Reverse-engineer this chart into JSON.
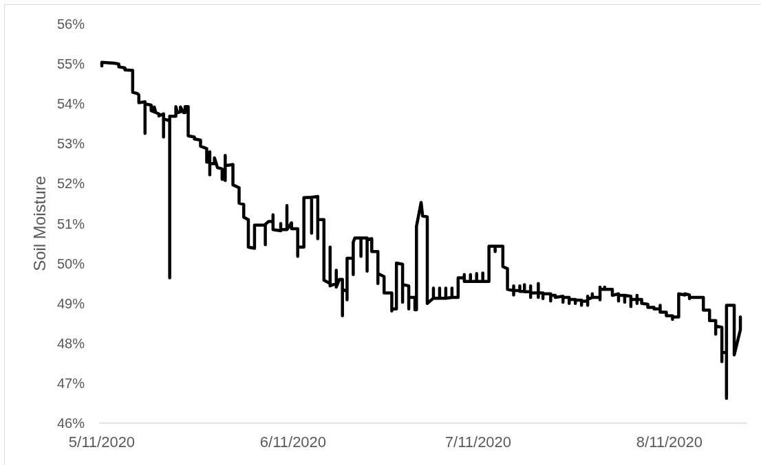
{
  "chart_data": {
    "type": "line",
    "ylabel": "Soil Moisture",
    "color": "#000000",
    "marker": "none",
    "line_style": "solid",
    "xlim": [
      "2020-05-10T16:00",
      "2020-08-23T12:00"
    ],
    "xticks": [
      {
        "value": "2020-05-11",
        "label": "5/11/2020"
      },
      {
        "value": "2020-06-11",
        "label": "6/11/2020"
      },
      {
        "value": "2020-07-11",
        "label": "7/11/2020"
      },
      {
        "value": "2020-08-11",
        "label": "8/11/2020"
      }
    ],
    "ylim": [
      46,
      56
    ],
    "yticks": [
      {
        "value": 46,
        "label": "46%"
      },
      {
        "value": 47,
        "label": "47%"
      },
      {
        "value": 48,
        "label": "48%"
      },
      {
        "value": 49,
        "label": "49%"
      },
      {
        "value": 50,
        "label": "50%"
      },
      {
        "value": 51,
        "label": "51%"
      },
      {
        "value": 52,
        "label": "52%"
      },
      {
        "value": 53,
        "label": "53%"
      },
      {
        "value": 54,
        "label": "54%"
      },
      {
        "value": 55,
        "label": "55%"
      },
      {
        "value": 56,
        "label": "56%"
      }
    ],
    "x": [
      "2020-05-11T00:00",
      "2020-05-11T00:00",
      "2020-05-13T00:00",
      "2020-05-13T18:00",
      "2020-05-13T18:00",
      "2020-05-14T18:00",
      "2020-05-14T18:00",
      "2020-05-16T00:00",
      "2020-05-16T00:00",
      "2020-05-16T18:00",
      "2020-05-17T00:00",
      "2020-05-17T00:00",
      "2020-05-18T00:00",
      "2020-05-18T00:00",
      "2020-05-18T00:00",
      "2020-05-19T00:00",
      "2020-05-19T00:00",
      "2020-05-19T12:00",
      "2020-05-19T12:00",
      "2020-05-19T18:00",
      "2020-05-20T06:00",
      "2020-05-20T06:00",
      "2020-05-21T00:00",
      "2020-05-21T00:00",
      "2020-05-21T00:00",
      "2020-05-21T12:00",
      "2020-05-22T00:00",
      "2020-05-22T00:00",
      "2020-05-22T00:00",
      "2020-05-23T00:00",
      "2020-05-23T00:00",
      "2020-05-23T06:00",
      "2020-05-23T18:00",
      "2020-05-23T18:00",
      "2020-05-24T06:00",
      "2020-05-24T12:00",
      "2020-05-24T12:00",
      "2020-05-25T00:00",
      "2020-05-25T00:00",
      "2020-05-26T00:00",
      "2020-05-26T00:00",
      "2020-05-27T00:00",
      "2020-05-27T00:00",
      "2020-05-28T00:00",
      "2020-05-28T00:00",
      "2020-05-28T12:00",
      "2020-05-28T12:00",
      "2020-05-28T12:00",
      "2020-05-28T12:00",
      "2020-05-29T06:00",
      "2020-05-29T06:00",
      "2020-05-29T18:00",
      "2020-05-30T12:00",
      "2020-05-30T12:00",
      "2020-05-31T00:00",
      "2020-05-31T00:00",
      "2020-05-31T00:00",
      "2020-05-31T00:00",
      "2020-06-01T06:00",
      "2020-06-01T06:00",
      "2020-06-02T06:00",
      "2020-06-02T06:00",
      "2020-06-03T00:00",
      "2020-06-03T00:00",
      "2020-06-03T18:00",
      "2020-06-03T18:00",
      "2020-06-04T18:00",
      "2020-06-04T18:00",
      "2020-06-06T12:00",
      "2020-06-06T12:00",
      "2020-06-06T12:00",
      "2020-06-07T00:00",
      "2020-06-07T18:00",
      "2020-06-07T18:00",
      "2020-06-07T18:00",
      "2020-06-09T00:00",
      "2020-06-09T00:00",
      "2020-06-09T00:00",
      "2020-06-10T00:00",
      "2020-06-10T00:00",
      "2020-06-10T00:00",
      "2020-06-10T18:00",
      "2020-06-10T18:00",
      "2020-06-11T18:00",
      "2020-06-11T18:00",
      "2020-06-11T18:00",
      "2020-06-12T18:00",
      "2020-06-12T18:00",
      "2020-06-14T00:00",
      "2020-06-14T00:00",
      "2020-06-14T00:00",
      "2020-06-15T00:00",
      "2020-06-15T00:00",
      "2020-06-15T00:00",
      "2020-06-16T00:00",
      "2020-06-16T00:00",
      "2020-06-17T00:00",
      "2020-06-17T00:00",
      "2020-06-17T00:00",
      "2020-06-18T00:00",
      "2020-06-18T00:00",
      "2020-06-18T00:00",
      "2020-06-18T12:00",
      "2020-06-19T00:00",
      "2020-06-19T00:00",
      "2020-06-19T00:00",
      "2020-06-19T18:00",
      "2020-06-19T18:00",
      "2020-06-19T18:00",
      "2020-06-20T18:00",
      "2020-06-20T18:00",
      "2020-06-20T18:00",
      "2020-06-21T00:00",
      "2020-06-22T00:00",
      "2020-06-22T00:00",
      "2020-06-22T00:00",
      "2020-06-23T00:00",
      "2020-06-23T00:00",
      "2020-06-23T00:00",
      "2020-06-23T18:00",
      "2020-06-23T18:00",
      "2020-06-24T18:00",
      "2020-06-24T18:00",
      "2020-06-24T18:00",
      "2020-06-25T18:00",
      "2020-06-25T18:00",
      "2020-06-27T00:00",
      "2020-06-27T00:00",
      "2020-06-27T00:00",
      "2020-06-27T18:00",
      "2020-06-27T18:00",
      "2020-06-28T18:00",
      "2020-06-28T18:00",
      "2020-06-28T18:00",
      "2020-06-29T18:00",
      "2020-06-29T18:00",
      "2020-06-29T18:00",
      "2020-06-30T18:00",
      "2020-06-30T18:00",
      "2020-07-01T00:00",
      "2020-07-01T00:00",
      "2020-07-01T18:00",
      "2020-07-02T00:00",
      "2020-07-02T18:00",
      "2020-07-02T18:00",
      "2020-07-03T18:00",
      "2020-07-03T18:00",
      "2020-07-03T18:00",
      "2020-07-04T18:00",
      "2020-07-04T18:00",
      "2020-07-04T18:00",
      "2020-07-05T18:00",
      "2020-07-05T18:00",
      "2020-07-05T18:00",
      "2020-07-06T18:00",
      "2020-07-06T18:00",
      "2020-07-06T18:00",
      "2020-07-07T18:00",
      "2020-07-07T18:00",
      "2020-07-08T18:00",
      "2020-07-08T18:00",
      "2020-07-08T18:00",
      "2020-07-09T18:00",
      "2020-07-09T18:00",
      "2020-07-09T18:00",
      "2020-07-10T18:00",
      "2020-07-10T18:00",
      "2020-07-10T18:00",
      "2020-07-11T18:00",
      "2020-07-11T18:00",
      "2020-07-11T18:00",
      "2020-07-12T18:00",
      "2020-07-12T18:00",
      "2020-07-13T18:00",
      "2020-07-13T18:00",
      "2020-07-13T18:00",
      "2020-07-15T00:00",
      "2020-07-15T00:00",
      "2020-07-15T18:00",
      "2020-07-15T18:00",
      "2020-07-16T18:00",
      "2020-07-16T18:00",
      "2020-07-16T18:00",
      "2020-07-16T18:00",
      "2020-07-17T18:00",
      "2020-07-17T18:00",
      "2020-07-17T18:00",
      "2020-07-18T12:00",
      "2020-07-18T12:00",
      "2020-07-18T12:00",
      "2020-07-19T12:00",
      "2020-07-19T12:00",
      "2020-07-19T12:00",
      "2020-07-19T12:00",
      "2020-07-20T18:00",
      "2020-07-20T18:00",
      "2020-07-20T18:00",
      "2020-07-20T18:00",
      "2020-07-21T12:00",
      "2020-07-21T12:00",
      "2020-07-21T12:00",
      "2020-07-22T18:00",
      "2020-07-22T18:00",
      "2020-07-22T18:00",
      "2020-07-23T12:00",
      "2020-07-23T12:00",
      "2020-07-24T18:00",
      "2020-07-24T18:00",
      "2020-07-24T18:00",
      "2020-07-25T18:00",
      "2020-07-25T18:00",
      "2020-07-25T18:00",
      "2020-07-26T18:00",
      "2020-07-26T18:00",
      "2020-07-26T18:00",
      "2020-07-27T18:00",
      "2020-07-27T18:00",
      "2020-07-27T18:00",
      "2020-07-28T18:00",
      "2020-07-28T18:00",
      "2020-07-28T18:00",
      "2020-07-28T18:00",
      "2020-07-29T12:00",
      "2020-07-29T12:00",
      "2020-07-29T12:00",
      "2020-07-30T18:00",
      "2020-07-30T18:00",
      "2020-07-30T18:00",
      "2020-07-30T18:00",
      "2020-07-31T12:00",
      "2020-07-31T12:00",
      "2020-07-31T12:00",
      "2020-08-01T18:00",
      "2020-08-01T18:00",
      "2020-08-02T18:00",
      "2020-08-02T18:00",
      "2020-08-02T18:00",
      "2020-08-03T18:00",
      "2020-08-03T18:00",
      "2020-08-03T18:00",
      "2020-08-04T18:00",
      "2020-08-04T18:00",
      "2020-08-04T18:00",
      "2020-08-05T18:00",
      "2020-08-05T18:00",
      "2020-08-05T18:00",
      "2020-08-05T18:00",
      "2020-08-06T12:00",
      "2020-08-06T12:00",
      "2020-08-07T12:00",
      "2020-08-07T12:00",
      "2020-08-08T12:00",
      "2020-08-08T12:00",
      "2020-08-09T12:00",
      "2020-08-09T12:00",
      "2020-08-09T12:00",
      "2020-08-10T12:00",
      "2020-08-10T12:00",
      "2020-08-11T12:00",
      "2020-08-11T12:00",
      "2020-08-11T12:00",
      "2020-08-12T12:00",
      "2020-08-12T12:00",
      "2020-08-13T12:00",
      "2020-08-13T12:00",
      "2020-08-14T06:00",
      "2020-08-14T06:00",
      "2020-08-14T06:00",
      "2020-08-16T12:00",
      "2020-08-16T12:00",
      "2020-08-17T12:00",
      "2020-08-17T12:00",
      "2020-08-18T12:00",
      "2020-08-18T12:00",
      "2020-08-18T12:00",
      "2020-08-19T12:00",
      "2020-08-19T12:00",
      "2020-08-19T12:00",
      "2020-08-20T06:00",
      "2020-08-20T06:00",
      "2020-08-20T06:00",
      "2020-08-21T12:00",
      "2020-08-21T12:00",
      "2020-08-22T12:00",
      "2020-08-22T12:00"
    ],
    "values": [
      54.95,
      55.04,
      55.02,
      55.0,
      54.93,
      54.9,
      54.85,
      54.84,
      54.29,
      54.26,
      54.22,
      54.03,
      54.05,
      53.26,
      54.0,
      53.97,
      53.83,
      53.8,
      53.92,
      53.78,
      53.75,
      53.7,
      53.75,
      53.17,
      53.62,
      53.6,
      53.57,
      49.64,
      53.69,
      53.69,
      53.93,
      53.78,
      53.8,
      53.92,
      53.78,
      53.78,
      53.93,
      53.93,
      53.2,
      53.17,
      53.12,
      53.09,
      52.94,
      52.88,
      52.54,
      52.54,
      52.8,
      52.22,
      52.5,
      52.5,
      52.65,
      52.4,
      52.37,
      52.11,
      52.11,
      52.71,
      52.08,
      52.45,
      52.48,
      51.97,
      51.9,
      51.51,
      51.48,
      51.16,
      51.1,
      50.41,
      50.38,
      50.96,
      50.96,
      50.47,
      50.98,
      51.05,
      51.05,
      51.22,
      50.85,
      50.82,
      51.0,
      50.85,
      50.85,
      51.45,
      50.85,
      51.02,
      50.87,
      50.87,
      50.18,
      50.41,
      50.41,
      51.65,
      51.66,
      50.76,
      51.66,
      51.68,
      50.62,
      51.1,
      51.1,
      49.58,
      49.5,
      50.41,
      49.44,
      49.5,
      49.83,
      49.41,
      49.6,
      49.6,
      48.69,
      49.35,
      49.3,
      49.09,
      50.13,
      50.13,
      49.72,
      50.53,
      50.64,
      50.64,
      50.18,
      50.64,
      50.64,
      49.81,
      50.6,
      50.62,
      50.3,
      50.3,
      49.5,
      49.75,
      49.67,
      49.26,
      49.26,
      48.81,
      48.86,
      48.86,
      50.01,
      49.98,
      49.03,
      49.47,
      49.44,
      48.86,
      49.15,
      49.15,
      48.84,
      48.84,
      50.93,
      51.53,
      51.19,
      51.17,
      49.0,
      49.13,
      49.38,
      49.13,
      49.13,
      49.38,
      49.13,
      49.13,
      49.38,
      49.13,
      49.15,
      49.38,
      49.15,
      49.15,
      49.64,
      49.64,
      49.72,
      49.55,
      49.55,
      49.72,
      49.55,
      49.55,
      49.75,
      49.55,
      49.55,
      49.76,
      49.55,
      49.55,
      50.43,
      50.43,
      50.3,
      50.43,
      50.43,
      49.92,
      49.87,
      49.35,
      49.32,
      49.44,
      49.21,
      49.32,
      49.32,
      49.44,
      49.3,
      49.3,
      49.47,
      49.29,
      49.29,
      49.44,
      49.15,
      49.26,
      49.26,
      49.5,
      49.15,
      49.26,
      49.26,
      49.12,
      49.24,
      49.24,
      49.06,
      49.2,
      49.2,
      49.15,
      49.18,
      49.03,
      49.15,
      49.15,
      49.0,
      49.1,
      49.1,
      49.0,
      49.08,
      49.08,
      48.95,
      49.05,
      49.06,
      49.18,
      48.95,
      49.1,
      49.15,
      49.24,
      49.15,
      49.15,
      49.41,
      49.09,
      49.35,
      49.35,
      49.41,
      49.35,
      49.35,
      49.2,
      49.24,
      49.06,
      49.2,
      49.2,
      49.03,
      49.2,
      49.18,
      48.92,
      49.1,
      49.1,
      49.2,
      49.0,
      49.1,
      49.1,
      49.0,
      48.98,
      48.9,
      48.9,
      48.86,
      48.86,
      48.95,
      48.78,
      48.78,
      48.69,
      48.69,
      48.6,
      48.66,
      48.66,
      49.24,
      49.21,
      49.24,
      49.21,
      49.12,
      49.15,
      49.15,
      48.83,
      48.83,
      48.57,
      48.57,
      48.23,
      48.43,
      48.4,
      47.54,
      47.77,
      47.77,
      46.62,
      48.95,
      48.95,
      47.71,
      48.34,
      48.66
    ]
  }
}
